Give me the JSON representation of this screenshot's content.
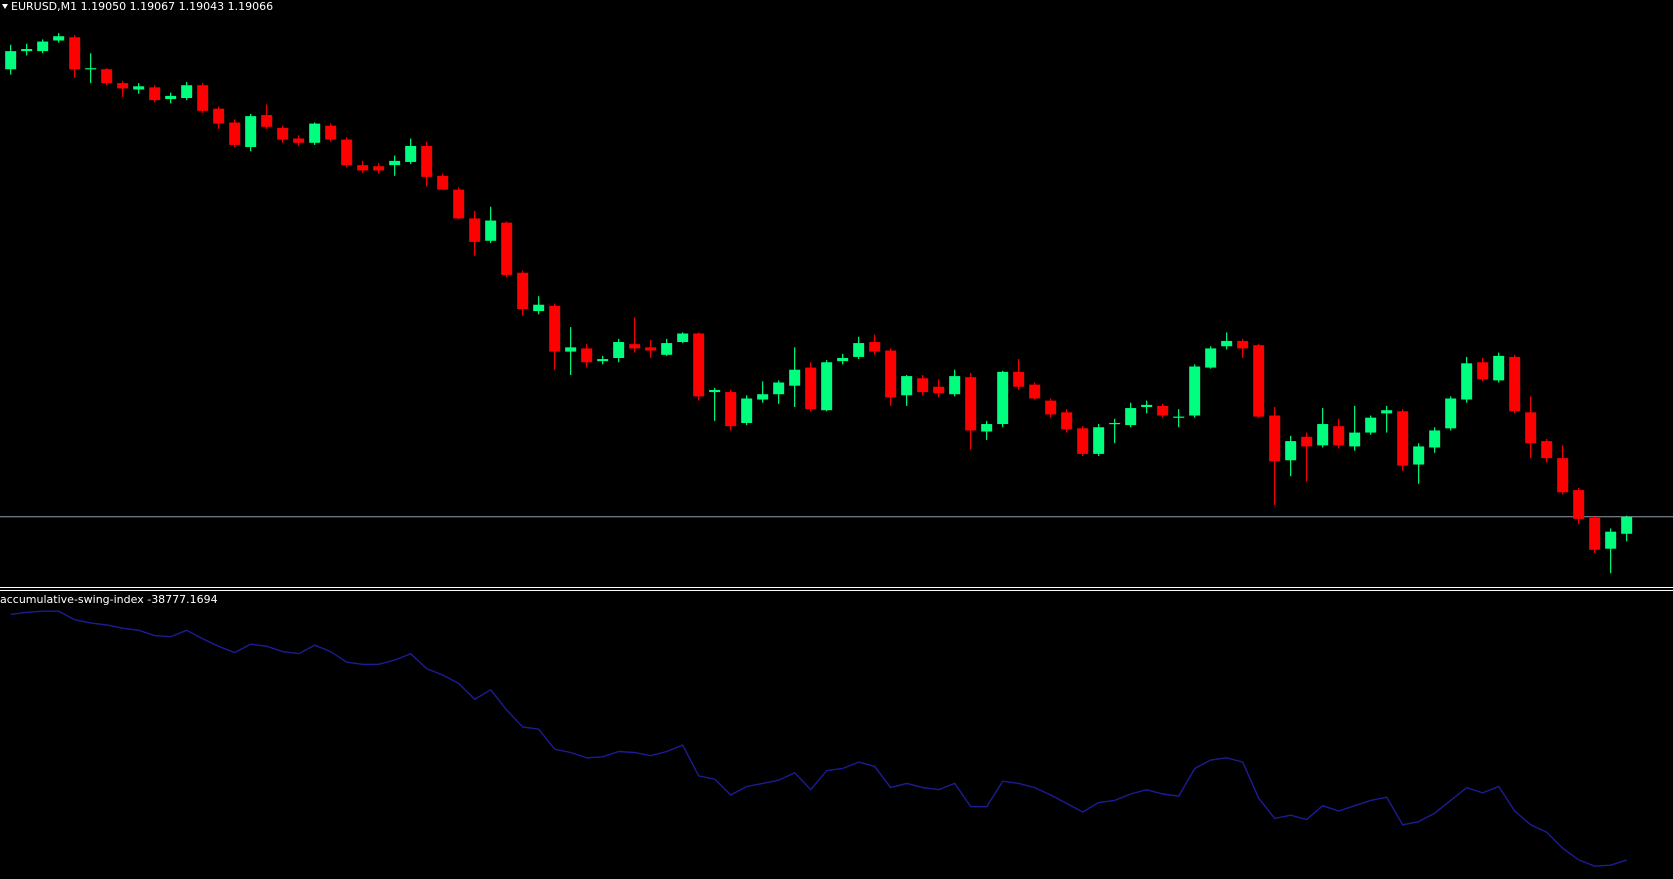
{
  "chart_data": [
    {
      "type": "candlestick",
      "title": "EURUSD,M1",
      "ohlc_labels": [
        "1.19050",
        "1.19067",
        "1.19043",
        "1.19066"
      ],
      "up_color": "#00ff7f",
      "down_color": "#ff0000",
      "bid_line_color": "#8e9cab",
      "ylim": [
        1.19001,
        1.19551
      ],
      "open": [
        1.19486,
        1.19503,
        1.19503,
        1.19513,
        1.19516,
        1.19487,
        1.19486,
        1.19473,
        1.19467,
        1.19469,
        1.19458,
        1.19459,
        1.19471,
        1.19449,
        1.19436,
        1.19413,
        1.19443,
        1.19431,
        1.19421,
        1.19417,
        1.19433,
        1.1942,
        1.19396,
        1.19395,
        1.19396,
        1.19399,
        1.19414,
        1.19386,
        1.19373,
        1.19346,
        1.19325,
        1.19342,
        1.19295,
        1.19259,
        1.19264,
        1.19221,
        1.19224,
        1.19212,
        1.19215,
        1.19228,
        1.19225,
        1.19218,
        1.1923,
        1.19238,
        1.19183,
        1.19183,
        1.19154,
        1.19176,
        1.19181,
        1.19189,
        1.19206,
        1.19166,
        1.19212,
        1.19216,
        1.1923,
        1.19222,
        1.1918,
        1.19196,
        1.19188,
        1.19181,
        1.19197,
        1.19146,
        1.19153,
        1.19202,
        1.1919,
        1.19175,
        1.19164,
        1.19149,
        1.19125,
        1.19153,
        1.19152,
        1.19169,
        1.1917,
        1.19159,
        1.19161,
        1.19206,
        1.19226,
        1.19231,
        1.19227,
        1.19161,
        1.19119,
        1.19141,
        1.19133,
        1.19151,
        1.19132,
        1.19145,
        1.19163,
        1.19165,
        1.19115,
        1.19131,
        1.19149,
        1.19176,
        1.19211,
        1.19194,
        1.19216,
        1.19164,
        1.19137,
        1.19121,
        1.19091,
        1.19065,
        1.19036,
        1.1905
      ],
      "high": [
        1.19509,
        1.1951,
        1.19514,
        1.1952,
        1.19518,
        1.19501,
        1.19487,
        1.19475,
        1.19473,
        1.19471,
        1.19464,
        1.19474,
        1.19473,
        1.19451,
        1.19439,
        1.19444,
        1.19453,
        1.19433,
        1.19424,
        1.19436,
        1.19435,
        1.19422,
        1.194,
        1.19398,
        1.19405,
        1.19421,
        1.19418,
        1.19388,
        1.19375,
        1.19353,
        1.19357,
        1.19343,
        1.19297,
        1.19273,
        1.19266,
        1.19244,
        1.19228,
        1.19217,
        1.19233,
        1.19253,
        1.19232,
        1.19233,
        1.19239,
        1.19239,
        1.19187,
        1.19185,
        1.1918,
        1.19193,
        1.19194,
        1.19225,
        1.19211,
        1.19213,
        1.19219,
        1.19235,
        1.19237,
        1.19224,
        1.19199,
        1.19199,
        1.19195,
        1.19204,
        1.19201,
        1.19156,
        1.19203,
        1.19214,
        1.19192,
        1.19177,
        1.19167,
        1.19151,
        1.19153,
        1.19158,
        1.19173,
        1.19175,
        1.19172,
        1.19167,
        1.19209,
        1.19226,
        1.19239,
        1.19233,
        1.19228,
        1.19169,
        1.19142,
        1.19145,
        1.19168,
        1.19158,
        1.1917,
        1.19161,
        1.1917,
        1.19167,
        1.19135,
        1.1915,
        1.19179,
        1.19216,
        1.19215,
        1.1922,
        1.19218,
        1.19179,
        1.19139,
        1.19133,
        1.19093,
        1.19067,
        1.19055,
        1.19067
      ],
      "low": [
        1.19481,
        1.19499,
        1.19501,
        1.19511,
        1.19478,
        1.19473,
        1.19471,
        1.1946,
        1.19463,
        1.19455,
        1.19454,
        1.19457,
        1.19445,
        1.1943,
        1.19413,
        1.19409,
        1.1943,
        1.19417,
        1.19414,
        1.19415,
        1.19418,
        1.19394,
        1.19389,
        1.19388,
        1.19386,
        1.19397,
        1.19376,
        1.19373,
        1.19345,
        1.19311,
        1.19323,
        1.19291,
        1.19255,
        1.19256,
        1.19204,
        1.19199,
        1.19206,
        1.19209,
        1.19211,
        1.1922,
        1.19215,
        1.19217,
        1.19229,
        1.19175,
        1.19156,
        1.19147,
        1.19152,
        1.19173,
        1.19172,
        1.19169,
        1.19165,
        1.19165,
        1.19209,
        1.19214,
        1.19218,
        1.1917,
        1.1917,
        1.1918,
        1.19178,
        1.19179,
        1.19129,
        1.19138,
        1.1915,
        1.19185,
        1.19176,
        1.19159,
        1.19145,
        1.19123,
        1.19123,
        1.19135,
        1.1915,
        1.19163,
        1.19159,
        1.1915,
        1.19159,
        1.19205,
        1.19223,
        1.19215,
        1.19159,
        1.19077,
        1.19104,
        1.19099,
        1.19131,
        1.1913,
        1.19128,
        1.19143,
        1.19145,
        1.19109,
        1.19097,
        1.19126,
        1.19147,
        1.19173,
        1.19193,
        1.19192,
        1.19163,
        1.19121,
        1.19117,
        1.19087,
        1.19059,
        1.19032,
        1.19013,
        1.19043
      ],
      "close": [
        1.19503,
        1.19505,
        1.19512,
        1.19517,
        1.19486,
        1.19487,
        1.19473,
        1.19468,
        1.1947,
        1.19457,
        1.19461,
        1.19471,
        1.19447,
        1.19435,
        1.19415,
        1.19442,
        1.19432,
        1.1942,
        1.19417,
        1.19435,
        1.1942,
        1.19396,
        1.19391,
        1.19391,
        1.194,
        1.19414,
        1.19385,
        1.19373,
        1.19346,
        1.19324,
        1.19344,
        1.19293,
        1.19261,
        1.19265,
        1.19221,
        1.19225,
        1.19211,
        1.19214,
        1.1923,
        1.19224,
        1.19222,
        1.19229,
        1.19238,
        1.19179,
        1.19185,
        1.19151,
        1.19177,
        1.19181,
        1.19192,
        1.19204,
        1.19167,
        1.19211,
        1.19215,
        1.19229,
        1.19221,
        1.19178,
        1.19198,
        1.19183,
        1.19182,
        1.19198,
        1.19147,
        1.19153,
        1.19202,
        1.19188,
        1.19177,
        1.19162,
        1.19148,
        1.19125,
        1.1915,
        1.19154,
        1.19168,
        1.19171,
        1.19161,
        1.1916,
        1.19207,
        1.19224,
        1.19231,
        1.19224,
        1.1916,
        1.19118,
        1.19137,
        1.19132,
        1.19153,
        1.19133,
        1.19145,
        1.19159,
        1.19166,
        1.19114,
        1.19132,
        1.19147,
        1.19177,
        1.1921,
        1.19195,
        1.19217,
        1.19165,
        1.19135,
        1.19121,
        1.19089,
        1.19064,
        1.19035,
        1.19052,
        1.19066
      ]
    },
    {
      "type": "line",
      "title": "accumulative-swing-index",
      "color": "#1c1c96",
      "ylim": [
        -39137,
        -33717
      ],
      "values": [
        -34157,
        -34117,
        -34097,
        -34097,
        -34257,
        -34317,
        -34357,
        -34417,
        -34457,
        -34557,
        -34577,
        -34457,
        -34617,
        -34757,
        -34877,
        -34717,
        -34757,
        -34857,
        -34897,
        -34737,
        -34857,
        -35057,
        -35097,
        -35097,
        -35017,
        -34897,
        -35177,
        -35297,
        -35457,
        -35757,
        -35577,
        -35957,
        -36277,
        -36317,
        -36697,
        -36757,
        -36857,
        -36837,
        -36737,
        -36757,
        -36817,
        -36737,
        -36617,
        -37197,
        -37257,
        -37557,
        -37397,
        -37337,
        -37277,
        -37137,
        -37457,
        -37097,
        -37057,
        -36937,
        -37017,
        -37417,
        -37337,
        -37417,
        -37457,
        -37337,
        -37777,
        -37777,
        -37297,
        -37337,
        -37417,
        -37557,
        -37717,
        -37877,
        -37697,
        -37657,
        -37537,
        -37457,
        -37537,
        -37577,
        -37057,
        -36897,
        -36857,
        -36937,
        -37617,
        -37997,
        -37937,
        -38017,
        -37757,
        -37857,
        -37757,
        -37657,
        -37597,
        -38117,
        -38057,
        -37897,
        -37657,
        -37417,
        -37517,
        -37397,
        -37857,
        -38117,
        -38257,
        -38557,
        -38777,
        -38897,
        -38877,
        -38777.1694
      ]
    }
  ]
}
